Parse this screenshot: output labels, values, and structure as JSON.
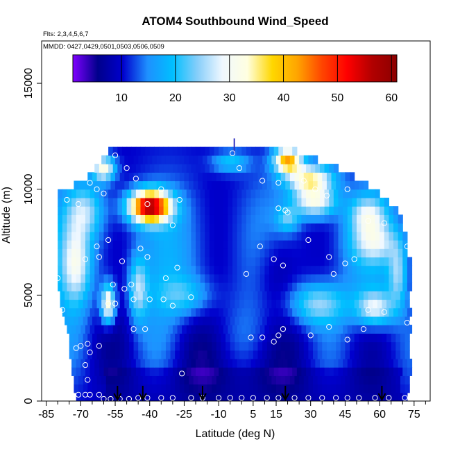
{
  "chart_data": {
    "type": "heatmap",
    "title": "ATOM4 Southbound Wind_Speed",
    "subtitle_flights": "Flts: 2,3,4,5,6,7",
    "subtitle_dates": "MMDD: 0427,0429,0501,0503,0506,0509",
    "xlabel": "Latitude (deg N)",
    "ylabel": "Altitude (m)",
    "xlim": [
      -87,
      82
    ],
    "ylim": [
      0,
      17000
    ],
    "x_ticks": [
      -85,
      -70,
      -55,
      -40,
      -25,
      -10,
      5,
      15,
      30,
      45,
      60,
      75
    ],
    "x_tick_labels": [
      "-85",
      "-70",
      "-55",
      "-40",
      "-25",
      "-10",
      "5",
      "15",
      "30",
      "45",
      "60",
      "75"
    ],
    "x_minor_ticks": [
      -80,
      -75,
      -65,
      -60,
      -50,
      -45,
      -35,
      -30,
      -20,
      -15,
      -5,
      0,
      10,
      20,
      25,
      35,
      40,
      50,
      55,
      65,
      70,
      80
    ],
    "y_ticks": [
      0,
      5000,
      10000,
      15000
    ],
    "y_tick_labels": [
      "0",
      "5000",
      "10000",
      "15000"
    ],
    "colorbar": {
      "range": [
        1,
        61
      ],
      "ticks": [
        10,
        20,
        30,
        40,
        50,
        60
      ],
      "tick_labels": [
        "10",
        "20",
        "30",
        "40",
        "50",
        "60"
      ],
      "colors": [
        "#7f00ff",
        "#00008b",
        "#0000cd",
        "#1e90ff",
        "#00bfff",
        "#87cefa",
        "#f0f8ff",
        "#ffffe0",
        "#ffd700",
        "#ffa500",
        "#ff4500",
        "#ff0000",
        "#b20000",
        "#8b0000"
      ]
    },
    "grid_cell": {
      "dx_deg": 2,
      "dz_m": 400
    },
    "coverage": [
      {
        "alt": 300,
        "lat": [
          -72,
          71
        ]
      },
      {
        "alt": 1000,
        "lat": [
          -73,
          72
        ]
      },
      {
        "alt": 2000,
        "lat": [
          -74,
          73
        ]
      },
      {
        "alt": 3000,
        "lat": [
          -75,
          73
        ]
      },
      {
        "alt": 4000,
        "lat": [
          -77,
          73
        ]
      },
      {
        "alt": 5000,
        "lat": [
          -79,
          73
        ]
      },
      {
        "alt": 6000,
        "lat": [
          -80,
          73
        ]
      },
      {
        "alt": 7000,
        "lat": [
          -80,
          72
        ]
      },
      {
        "alt": 8000,
        "lat": [
          -80,
          70
        ]
      },
      {
        "alt": 9000,
        "lat": [
          -80,
          68
        ]
      },
      {
        "alt": 9800,
        "lat": [
          -80,
          60
        ]
      },
      {
        "alt": 10500,
        "lat": [
          -67,
          50
        ]
      },
      {
        "alt": 11200,
        "lat": [
          -62,
          38
        ]
      },
      {
        "alt": 11700,
        "lat": [
          -58,
          24
        ]
      },
      {
        "alt": 12000,
        "lat": [
          -58,
          22
        ]
      }
    ],
    "wind_features": [
      {
        "lat": -40,
        "alt": 9200,
        "slat": 9,
        "salt": 750,
        "amp": 45
      },
      {
        "lat": -60,
        "alt": 11000,
        "slat": 5,
        "salt": 600,
        "amp": 22
      },
      {
        "lat": -58,
        "alt": 4600,
        "slat": 3,
        "salt": 900,
        "amp": 24
      },
      {
        "lat": -45,
        "alt": 5300,
        "slat": 4,
        "salt": 1500,
        "amp": 14
      },
      {
        "lat": -72,
        "alt": 6500,
        "slat": 6,
        "salt": 1800,
        "amp": 14
      },
      {
        "lat": -68,
        "alt": 9000,
        "slat": 8,
        "salt": 1200,
        "amp": 12
      },
      {
        "lat": -5,
        "alt": 11300,
        "slat": 8,
        "salt": 500,
        "amp": 10
      },
      {
        "lat": 20,
        "alt": 11400,
        "slat": 6,
        "salt": 600,
        "amp": 30
      },
      {
        "lat": 30,
        "alt": 10500,
        "slat": 10,
        "salt": 700,
        "amp": 24
      },
      {
        "lat": 32,
        "alt": 9400,
        "slat": 9,
        "salt": 700,
        "amp": 20
      },
      {
        "lat": 20,
        "alt": 8600,
        "slat": 5,
        "salt": 600,
        "amp": 10
      },
      {
        "lat": 55,
        "alt": 8800,
        "slat": 8,
        "salt": 900,
        "amp": 14
      },
      {
        "lat": 58,
        "alt": 7500,
        "slat": 10,
        "salt": 900,
        "amp": 12
      },
      {
        "lat": 33,
        "alt": 4600,
        "slat": 12,
        "salt": 1000,
        "amp": 14
      },
      {
        "lat": 58,
        "alt": 4400,
        "slat": 8,
        "salt": 800,
        "amp": 16
      },
      {
        "lat": 68,
        "alt": 6000,
        "slat": 4,
        "salt": 1500,
        "amp": 12
      },
      {
        "lat": -25,
        "alt": 5000,
        "slat": 12,
        "salt": 900,
        "amp": 8
      },
      {
        "lat": 15,
        "alt": 6200,
        "slat": 10,
        "salt": 2200,
        "amp": -8
      },
      {
        "lat": 0,
        "alt": 1500,
        "slat": 25,
        "salt": 1500,
        "amp": -3
      }
    ],
    "obs_points": [
      {
        "lat": -76,
        "alt": 9500
      },
      {
        "lat": -71,
        "alt": 9300
      },
      {
        "lat": -66,
        "alt": 10300
      },
      {
        "lat": -63,
        "alt": 10000
      },
      {
        "lat": -60,
        "alt": 9800
      },
      {
        "lat": -55,
        "alt": 11600
      },
      {
        "lat": -50,
        "alt": 11000
      },
      {
        "lat": -46,
        "alt": 10500
      },
      {
        "lat": -41,
        "alt": 9300
      },
      {
        "lat": -35,
        "alt": 10000
      },
      {
        "lat": -30,
        "alt": 8300
      },
      {
        "lat": -27,
        "alt": 9500
      },
      {
        "lat": -58,
        "alt": 7600
      },
      {
        "lat": -63,
        "alt": 7300
      },
      {
        "lat": -68,
        "alt": 6700
      },
      {
        "lat": -62,
        "alt": 6800
      },
      {
        "lat": -52,
        "alt": 6600
      },
      {
        "lat": -44,
        "alt": 7200
      },
      {
        "lat": -41,
        "alt": 6800
      },
      {
        "lat": -33,
        "alt": 5800
      },
      {
        "lat": -28,
        "alt": 6300
      },
      {
        "lat": -80,
        "alt": 5800
      },
      {
        "lat": -83,
        "alt": 5600
      },
      {
        "lat": -78,
        "alt": 4300
      },
      {
        "lat": -56,
        "alt": 5500
      },
      {
        "lat": -51,
        "alt": 5300
      },
      {
        "lat": -48,
        "alt": 5500
      },
      {
        "lat": -47,
        "alt": 4800
      },
      {
        "lat": -40,
        "alt": 4800
      },
      {
        "lat": -34,
        "alt": 4800
      },
      {
        "lat": -30,
        "alt": 4500
      },
      {
        "lat": -22,
        "alt": 4900
      },
      {
        "lat": -58,
        "alt": 4600
      },
      {
        "lat": -55,
        "alt": 4600
      },
      {
        "lat": -47,
        "alt": 3400
      },
      {
        "lat": -42,
        "alt": 3400
      },
      {
        "lat": -70,
        "alt": 2600
      },
      {
        "lat": -67,
        "alt": 2700
      },
      {
        "lat": -62,
        "alt": 2600
      },
      {
        "lat": -72,
        "alt": 2500
      },
      {
        "lat": -66,
        "alt": 2300
      },
      {
        "lat": -68,
        "alt": 1700
      },
      {
        "lat": -67,
        "alt": 1000
      },
      {
        "lat": -71,
        "alt": 300
      },
      {
        "lat": -68,
        "alt": 300
      },
      {
        "lat": -66,
        "alt": 300
      },
      {
        "lat": -62,
        "alt": 300
      },
      {
        "lat": -60,
        "alt": 100
      },
      {
        "lat": -57,
        "alt": 100
      },
      {
        "lat": -53,
        "alt": 100
      },
      {
        "lat": -49,
        "alt": 100
      },
      {
        "lat": -45,
        "alt": 150
      },
      {
        "lat": -41,
        "alt": 150
      },
      {
        "lat": -35,
        "alt": 150
      },
      {
        "lat": -30,
        "alt": 150
      },
      {
        "lat": -26,
        "alt": 1300
      },
      {
        "lat": -22,
        "alt": 150
      },
      {
        "lat": -17,
        "alt": 150
      },
      {
        "lat": -10,
        "alt": 150
      },
      {
        "lat": -5,
        "alt": 150
      },
      {
        "lat": 0,
        "alt": 150
      },
      {
        "lat": 5,
        "alt": 150
      },
      {
        "lat": 11,
        "alt": 150
      },
      {
        "lat": 16,
        "alt": 150
      },
      {
        "lat": 23,
        "alt": 150
      },
      {
        "lat": 29,
        "alt": 150
      },
      {
        "lat": 35,
        "alt": 150
      },
      {
        "lat": 41,
        "alt": 150
      },
      {
        "lat": 46,
        "alt": 150
      },
      {
        "lat": 51,
        "alt": 150
      },
      {
        "lat": 58,
        "alt": 150
      },
      {
        "lat": 64,
        "alt": 150
      },
      {
        "lat": 71,
        "alt": 150
      },
      {
        "lat": -4,
        "alt": 11700
      },
      {
        "lat": -1,
        "alt": 11000
      },
      {
        "lat": 9,
        "alt": 10400
      },
      {
        "lat": 16,
        "alt": 10300
      },
      {
        "lat": 27,
        "alt": 10400
      },
      {
        "lat": 32,
        "alt": 10000
      },
      {
        "lat": 37,
        "alt": 9700
      },
      {
        "lat": 46,
        "alt": 10000
      },
      {
        "lat": 19,
        "alt": 9000
      },
      {
        "lat": 16,
        "alt": 9100
      },
      {
        "lat": 20,
        "alt": 8900
      },
      {
        "lat": 55,
        "alt": 8500
      },
      {
        "lat": 62,
        "alt": 8400
      },
      {
        "lat": 72,
        "alt": 7300
      },
      {
        "lat": 8,
        "alt": 7300
      },
      {
        "lat": 14,
        "alt": 6700
      },
      {
        "lat": 18,
        "alt": 6400
      },
      {
        "lat": 29,
        "alt": 7600
      },
      {
        "lat": 38,
        "alt": 6800
      },
      {
        "lat": 45,
        "alt": 6500
      },
      {
        "lat": 49,
        "alt": 6700
      },
      {
        "lat": 40,
        "alt": 6000
      },
      {
        "lat": 2,
        "alt": 6000
      },
      {
        "lat": 55,
        "alt": 4300
      },
      {
        "lat": 62,
        "alt": 4200
      },
      {
        "lat": 72,
        "alt": 3700
      },
      {
        "lat": 4,
        "alt": 3000
      },
      {
        "lat": 9,
        "alt": 3000
      },
      {
        "lat": 16,
        "alt": 3100
      },
      {
        "lat": 18,
        "alt": 3400
      },
      {
        "lat": 30,
        "alt": 3100
      },
      {
        "lat": 38,
        "alt": 3500
      },
      {
        "lat": 46,
        "alt": 2900
      },
      {
        "lat": 53,
        "alt": 3400
      },
      {
        "lat": 14,
        "alt": 2800
      }
    ],
    "flight_markers_lat": [
      -54,
      -43,
      -17,
      19,
      61
    ]
  }
}
